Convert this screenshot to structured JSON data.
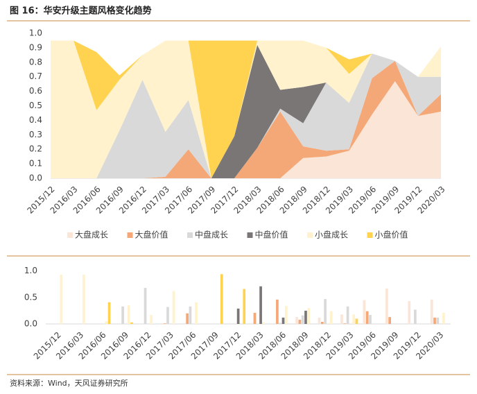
{
  "source": "资料来源：Wind，天风证券研究所",
  "chart_data": [
    {
      "type": "stacked_area",
      "title": "图 16：华安升级主题风格变化趋势",
      "categories": [
        "2015/12",
        "2016/03",
        "2016/06",
        "2016/09",
        "2016/12",
        "2017/03",
        "2017/06",
        "2017/09",
        "2017/12",
        "2018/03",
        "2018/06",
        "2018/09",
        "2018/12",
        "2019/03",
        "2019/06",
        "2019/09",
        "2019/12",
        "2020/03"
      ],
      "series": [
        {
          "name": "大盘成长",
          "color": "#fbe5d6",
          "values": [
            0,
            0,
            0,
            0,
            0,
            0,
            0,
            0,
            0,
            0,
            0,
            0.14,
            0.15,
            0.19,
            0.44,
            0.67,
            0.43,
            0.46
          ]
        },
        {
          "name": "大盘价值",
          "color": "#f4a877",
          "values": [
            0,
            0,
            0,
            0,
            0,
            0.01,
            0.2,
            0,
            0,
            0.21,
            0.46,
            0.08,
            0.04,
            0.01,
            0.25,
            0.14,
            0,
            0.12
          ]
        },
        {
          "name": "中盘成长",
          "color": "#d9d9d9",
          "values": [
            0,
            0,
            0,
            0.33,
            0.68,
            0.31,
            0.34,
            0,
            0,
            0,
            0.02,
            0.16,
            0.47,
            0.32,
            0.17,
            0,
            0.27,
            0.12
          ]
        },
        {
          "name": "中盘价值",
          "color": "#7a7676",
          "values": [
            0,
            0,
            0,
            0,
            0,
            0,
            0,
            0,
            0.29,
            0.71,
            0.13,
            0.25,
            0,
            0,
            0,
            0,
            0,
            0
          ]
        },
        {
          "name": "小盘成长",
          "color": "#fff2cc",
          "values": [
            0.95,
            0.95,
            0.47,
            0.35,
            0.17,
            0.63,
            0.41,
            0,
            0,
            0.03,
            0.34,
            0.32,
            0.24,
            0.2,
            0,
            0,
            0,
            0.21
          ]
        },
        {
          "name": "小盘价值",
          "color": "#ffd34f",
          "values": [
            0,
            0,
            0.4,
            0.03,
            0,
            0,
            0,
            0.95,
            0.66,
            0,
            0,
            0,
            0,
            0.1,
            0,
            0,
            0,
            0
          ]
        }
      ],
      "ylim": [
        0,
        1
      ],
      "yticks": [
        {
          "value": 0,
          "label": "0.0"
        },
        {
          "value": 0.1,
          "label": "0.1"
        },
        {
          "value": 0.2,
          "label": "0.2"
        },
        {
          "value": 0.3,
          "label": "0.3"
        },
        {
          "value": 0.4,
          "label": "0.4"
        },
        {
          "value": 0.5,
          "label": "0.5"
        },
        {
          "value": 0.6,
          "label": "0.6"
        },
        {
          "value": 0.7,
          "label": "0.7"
        },
        {
          "value": 0.8,
          "label": "0.8"
        },
        {
          "value": 0.9,
          "label": "0.9"
        },
        {
          "value": 1,
          "label": "1.0"
        }
      ],
      "legend": "bottom"
    },
    {
      "type": "grouped_bar",
      "categories": [
        "2015/12",
        "2016/03",
        "2016/06",
        "2016/09",
        "2016/12",
        "2017/03",
        "2017/06",
        "2017/09",
        "2017/12",
        "2018/03",
        "2018/06",
        "2018/09",
        "2018/12",
        "2019/03",
        "2019/06",
        "2019/09",
        "2019/12",
        "2020/03"
      ],
      "series": [
        {
          "color": "#fbe5d6",
          "values": [
            0,
            0,
            0,
            0,
            0,
            0,
            0,
            0,
            0,
            0,
            0,
            0.13,
            0.12,
            0.18,
            0.45,
            0.67,
            0.43,
            0.46
          ]
        },
        {
          "color": "#f4a877",
          "values": [
            0,
            0,
            0,
            0,
            0,
            0.01,
            0.2,
            0,
            0,
            0.21,
            0.46,
            0.08,
            0.04,
            0.01,
            0.24,
            0.13,
            0,
            0.12
          ]
        },
        {
          "color": "#d9d9d9",
          "values": [
            0,
            0,
            0,
            0.33,
            0.68,
            0.32,
            0.33,
            0,
            0,
            0,
            0.02,
            0.16,
            0.47,
            0.33,
            0.17,
            0,
            0.27,
            0.12
          ]
        },
        {
          "color": "#7a7676",
          "values": [
            0,
            0,
            0,
            0,
            0,
            0,
            0,
            0,
            0.29,
            0.71,
            0.12,
            0.25,
            0,
            0,
            0,
            0,
            0,
            0
          ]
        },
        {
          "color": "#fff2cc",
          "values": [
            0.93,
            0.93,
            0.05,
            0.35,
            0.17,
            0.62,
            0.41,
            0,
            0,
            0.03,
            0.34,
            0.3,
            0.24,
            0.18,
            0,
            0,
            0,
            0.21
          ]
        },
        {
          "color": "#ffd34f",
          "values": [
            0,
            0,
            0.41,
            0.03,
            0,
            0,
            0,
            0.94,
            0.66,
            0,
            0,
            0,
            0,
            0.1,
            0,
            0,
            0,
            0
          ]
        }
      ],
      "ylim": [
        0,
        1.1
      ],
      "yticks": [
        {
          "value": 0,
          "label": "0.0"
        },
        {
          "value": 0.5,
          "label": "0.5"
        },
        {
          "value": 1,
          "label": "1.0"
        }
      ]
    }
  ]
}
